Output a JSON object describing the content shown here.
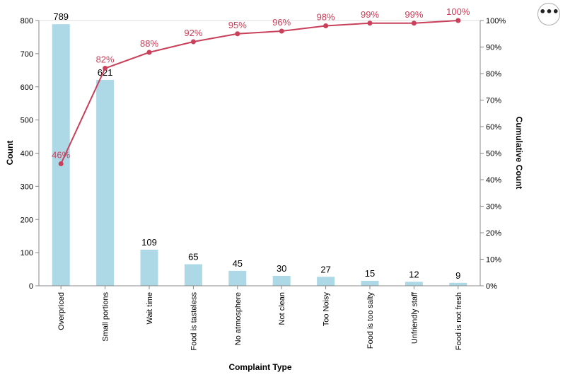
{
  "chart_data": {
    "type": "bar",
    "categories": [
      "Overpriced",
      "Small portions",
      "Wait time",
      "Food is tasteless",
      "No atmosphere",
      "Not clean",
      "Too Noisy",
      "Food is too salty",
      "Unfriendly staff",
      "Food is not fresh"
    ],
    "series": [
      {
        "type": "bar",
        "values": [
          789,
          621,
          109,
          65,
          45,
          30,
          27,
          15,
          12,
          9
        ],
        "labels": [
          "789",
          "621",
          "109",
          "65",
          "45",
          "30",
          "27",
          "15",
          "12",
          "9"
        ],
        "color": "#add8e6"
      },
      {
        "type": "line",
        "axis": "right",
        "values": [
          46,
          82,
          88,
          92,
          95,
          96,
          98,
          99,
          99,
          100
        ],
        "labels": [
          "46%",
          "82%",
          "88%",
          "92%",
          "95%",
          "96%",
          "98%",
          "99%",
          "99%",
          "100%"
        ],
        "color": "#c9405a"
      }
    ],
    "xlabel": "Complaint Type",
    "ylabel": "Count",
    "y2label": "Cumulative Count",
    "ylim": [
      0,
      800
    ],
    "yticks": [
      "0",
      "100",
      "200",
      "300",
      "400",
      "500",
      "600",
      "700",
      "800"
    ],
    "y2lim": [
      0,
      100
    ],
    "y2ticks": [
      "0%",
      "10%",
      "20%",
      "30%",
      "40%",
      "50%",
      "60%",
      "70%",
      "80%",
      "90%",
      "100%"
    ],
    "grid": false,
    "legend": "none"
  },
  "toolbar": {
    "more_icon": "more-horizontal-icon",
    "more_label": "•••"
  }
}
